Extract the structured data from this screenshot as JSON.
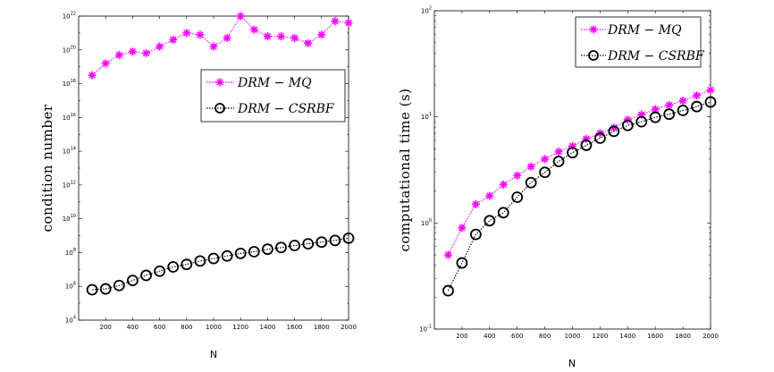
{
  "chart_data": [
    {
      "type": "line",
      "yscale": "log",
      "xlabel": "N",
      "ylabel": "condition number",
      "xlim": [
        0,
        2000
      ],
      "ylim_exp": [
        4,
        22
      ],
      "xticks": [
        "200",
        "400",
        "600",
        "800",
        "1000",
        "1200",
        "1400",
        "1600",
        "1800",
        "2000"
      ],
      "yticks": [
        "10^4",
        "10^6",
        "10^8",
        "10^10",
        "10^12",
        "10^14",
        "10^16",
        "10^18",
        "10^20",
        "10^22"
      ],
      "legend_position": "upper-right",
      "series": [
        {
          "name": "DRM − MQ",
          "color": "#ff00ff",
          "marker": "asterisk",
          "x": [
            100,
            200,
            300,
            400,
            500,
            600,
            700,
            800,
            900,
            1000,
            1100,
            1200,
            1300,
            1400,
            1500,
            1600,
            1700,
            1800,
            1900,
            2000
          ],
          "log10y": [
            18.5,
            19.2,
            19.7,
            19.9,
            19.8,
            20.2,
            20.6,
            21.0,
            20.9,
            20.2,
            20.7,
            22.0,
            21.2,
            20.8,
            20.8,
            20.7,
            20.4,
            20.9,
            21.7,
            21.6
          ]
        },
        {
          "name": "DRM − CSRBF",
          "color": "#000000",
          "marker": "circle",
          "x": [
            100,
            200,
            300,
            400,
            500,
            600,
            700,
            800,
            900,
            1000,
            1100,
            1200,
            1300,
            1400,
            1500,
            1600,
            1700,
            1800,
            1900,
            2000
          ],
          "log10y": [
            5.8,
            5.85,
            6.05,
            6.35,
            6.65,
            6.9,
            7.15,
            7.3,
            7.5,
            7.65,
            7.8,
            7.95,
            8.05,
            8.2,
            8.3,
            8.42,
            8.52,
            8.62,
            8.72,
            8.85
          ]
        }
      ]
    },
    {
      "type": "line",
      "yscale": "log",
      "xlabel": "N",
      "ylabel": "computational time (s)",
      "xlim": [
        0,
        2000
      ],
      "ylim_exp": [
        -1,
        2
      ],
      "xticks": [
        "200",
        "400",
        "600",
        "800",
        "1000",
        "1200",
        "1400",
        "1600",
        "1800",
        "2000"
      ],
      "yticks": [
        "10^-1",
        "10^0",
        "10^1",
        "10^2"
      ],
      "legend_position": "upper-right",
      "series": [
        {
          "name": "DRM − MQ",
          "color": "#ff00ff",
          "marker": "asterisk",
          "x": [
            100,
            200,
            300,
            400,
            500,
            600,
            700,
            800,
            900,
            1000,
            1100,
            1200,
            1300,
            1400,
            1500,
            1600,
            1700,
            1800,
            1900,
            2000
          ],
          "y": [
            0.5,
            0.9,
            1.5,
            1.8,
            2.3,
            2.8,
            3.4,
            4.0,
            4.7,
            5.3,
            6.2,
            7.0,
            7.9,
            9.4,
            10.5,
            11.8,
            12.9,
            14.2,
            15.9,
            17.9
          ]
        },
        {
          "name": "DRM − CSRBF",
          "color": "#000000",
          "marker": "circle",
          "x": [
            100,
            200,
            300,
            400,
            500,
            600,
            700,
            800,
            900,
            1000,
            1100,
            1200,
            1300,
            1400,
            1500,
            1600,
            1700,
            1800,
            1900,
            2000
          ],
          "y": [
            0.23,
            0.42,
            0.78,
            1.05,
            1.25,
            1.75,
            2.4,
            3.0,
            3.8,
            4.6,
            5.4,
            6.3,
            7.3,
            8.3,
            9.0,
            9.9,
            10.6,
            11.5,
            12.5,
            13.8
          ]
        }
      ]
    }
  ]
}
